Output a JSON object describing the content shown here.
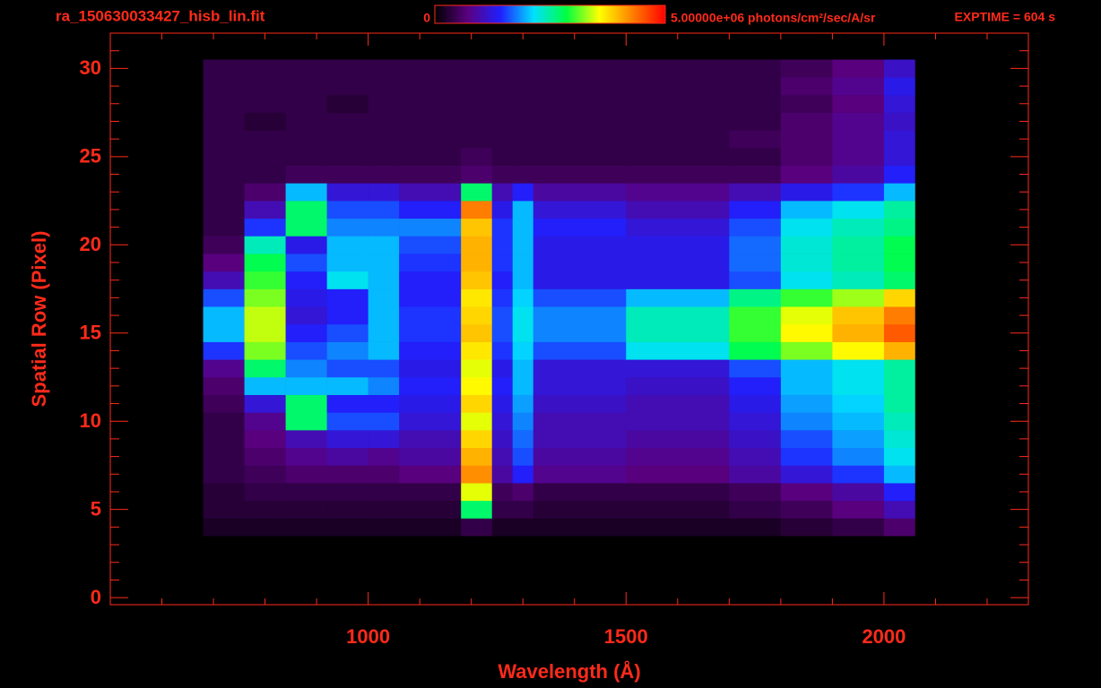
{
  "chart_data": {
    "type": "heatmap",
    "title": "ra_150630033427_hisb_lin.fit",
    "exposure": "EXPTIME = 604 s",
    "xlabel": "Wavelength (Å)",
    "ylabel": "Spatial Row (Pixel)",
    "xlim": [
      500,
      2280
    ],
    "ylim": [
      -0.4,
      32
    ],
    "xticks": [
      1000,
      1500,
      2000
    ],
    "yticks": [
      0,
      5,
      10,
      15,
      20,
      25,
      30
    ],
    "xminor": [
      600,
      700,
      800,
      900,
      1100,
      1200,
      1300,
      1400,
      1600,
      1700,
      1800,
      1900,
      2100,
      2200
    ],
    "yminor": [
      1,
      2,
      3,
      4,
      6,
      7,
      8,
      9,
      11,
      12,
      13,
      14,
      16,
      17,
      18,
      19,
      21,
      22,
      23,
      24,
      26,
      27,
      28,
      29,
      31
    ],
    "axis_color": "#ff2a1a",
    "colormap": [
      "#000000",
      "#5a0080",
      "#2020ff",
      "#00e0ff",
      "#00ff40",
      "#ffff00",
      "#ff8000",
      "#ff0000"
    ],
    "clim": [
      0,
      5000000
    ],
    "colorbar_ticks": [
      0,
      {
        "value": 5000000,
        "label": "5.00000e+06 photons/cm²/sec/A/sr"
      }
    ],
    "x_edges": [
      680,
      760,
      840,
      920,
      1000,
      1060,
      1180,
      1240,
      1280,
      1320,
      1500,
      1700,
      1800,
      1900,
      2000,
      2060
    ],
    "y": [
      4,
      5,
      6,
      7,
      8,
      9,
      10,
      11,
      12,
      13,
      14,
      15,
      16,
      17,
      18,
      19,
      20,
      21,
      22,
      23,
      24,
      25,
      26,
      27,
      28,
      29,
      30
    ],
    "z": [
      [
        200000.0,
        200000.0,
        200000.0,
        200000.0,
        200000.0,
        200000.0,
        400000.0,
        200000.0,
        200000.0,
        200000.0,
        200000.0,
        200000.0,
        300000.0,
        400000.0,
        600000.0
      ],
      [
        300000.0,
        300000.0,
        300000.0,
        300000.0,
        300000.0,
        300000.0,
        2700000.0,
        400000.0,
        400000.0,
        300000.0,
        300000.0,
        400000.0,
        500000.0,
        700000.0,
        1000000.0
      ],
      [
        300000.0,
        400000.0,
        400000.0,
        400000.0,
        400000.0,
        400000.0,
        3500000.0,
        500000.0,
        600000.0,
        400000.0,
        400000.0,
        500000.0,
        700000.0,
        900000.0,
        1400000.0
      ],
      [
        400000.0,
        500000.0,
        600000.0,
        600000.0,
        600000.0,
        700000.0,
        4200000.0,
        900000.0,
        1400000.0,
        800000.0,
        700000.0,
        900000.0,
        1200000.0,
        1500000.0,
        2000000.0
      ],
      [
        400000.0,
        600000.0,
        800000.0,
        900000.0,
        800000.0,
        900000.0,
        4000000.0,
        1000000.0,
        1600000.0,
        900000.0,
        800000.0,
        1000000.0,
        1500000.0,
        1800000.0,
        2200000.0
      ],
      [
        400000.0,
        700000.0,
        1000000.0,
        1200000.0,
        1200000.0,
        1000000.0,
        3800000.0,
        1100000.0,
        1700000.0,
        1000000.0,
        900000.0,
        1100000.0,
        1600000.0,
        1900000.0,
        2300000.0
      ],
      [
        400000.0,
        800000.0,
        2700000.0,
        1600000.0,
        1600000.0,
        1200000.0,
        3500000.0,
        1200000.0,
        1800000.0,
        1000000.0,
        1000000.0,
        1200000.0,
        1800000.0,
        2000000.0,
        2400000.0
      ],
      [
        500000.0,
        1200000.0,
        2700000.0,
        1400000.0,
        1400000.0,
        1300000.0,
        3800000.0,
        1300000.0,
        1900000.0,
        1100000.0,
        1000000.0,
        1300000.0,
        1900000.0,
        2100000.0,
        2500000.0
      ],
      [
        600000.0,
        2000000.0,
        2000000.0,
        2000000.0,
        1800000.0,
        1400000.0,
        3600000.0,
        1400000.0,
        2000000.0,
        1200000.0,
        1100000.0,
        1400000.0,
        2000000.0,
        2200000.0,
        2500000.0
      ],
      [
        800000.0,
        2700000.0,
        1800000.0,
        1600000.0,
        1600000.0,
        1300000.0,
        3500000.0,
        1300000.0,
        2000000.0,
        1200000.0,
        1200000.0,
        1600000.0,
        2000000.0,
        2200000.0,
        2500000.0
      ],
      [
        1500000.0,
        3200000.0,
        1600000.0,
        1800000.0,
        2000000.0,
        1400000.0,
        3700000.0,
        1500000.0,
        2100000.0,
        1600000.0,
        2200000.0,
        2800000.0,
        3200000.0,
        3600000.0,
        4000000.0
      ],
      [
        2000000.0,
        3400000.0,
        1400000.0,
        1600000.0,
        2000000.0,
        1500000.0,
        3900000.0,
        1600000.0,
        2200000.0,
        1800000.0,
        2400000.0,
        3000000.0,
        3600000.0,
        4000000.0,
        4500000.0
      ],
      [
        2000000.0,
        3400000.0,
        1200000.0,
        1400000.0,
        2000000.0,
        1500000.0,
        3800000.0,
        1600000.0,
        2200000.0,
        1800000.0,
        2400000.0,
        3000000.0,
        3500000.0,
        3900000.0,
        4300000.0
      ],
      [
        1600000.0,
        3200000.0,
        1300000.0,
        1400000.0,
        2000000.0,
        1400000.0,
        3700000.0,
        1500000.0,
        2100000.0,
        1600000.0,
        2000000.0,
        2600000.0,
        3000000.0,
        3300000.0,
        3800000.0
      ],
      [
        1000000.0,
        3000000.0,
        1400000.0,
        2200000.0,
        2000000.0,
        1400000.0,
        3900000.0,
        1400000.0,
        2000000.0,
        1300000.0,
        1300000.0,
        1600000.0,
        2200000.0,
        2400000.0,
        2700000.0
      ],
      [
        700000.0,
        2800000.0,
        1600000.0,
        2000000.0,
        2000000.0,
        1500000.0,
        4000000.0,
        1500000.0,
        2000000.0,
        1300000.0,
        1300000.0,
        1700000.0,
        2300000.0,
        2500000.0,
        2800000.0
      ],
      [
        500000.0,
        2400000.0,
        1300000.0,
        2000000.0,
        2000000.0,
        1600000.0,
        4000000.0,
        1500000.0,
        2000000.0,
        1300000.0,
        1300000.0,
        1700000.0,
        2300000.0,
        2500000.0,
        2800000.0
      ],
      [
        400000.0,
        1500000.0,
        2700000.0,
        1800000.0,
        1800000.0,
        1800000.0,
        3900000.0,
        1500000.0,
        2000000.0,
        1400000.0,
        1200000.0,
        1600000.0,
        2200000.0,
        2400000.0,
        2600000.0
      ],
      [
        400000.0,
        1000000.0,
        2700000.0,
        1600000.0,
        1600000.0,
        1400000.0,
        4300000.0,
        1300000.0,
        2000000.0,
        1200000.0,
        1000000.0,
        1400000.0,
        2000000.0,
        2200000.0,
        2500000.0
      ],
      [
        400000.0,
        600000.0,
        2000000.0,
        1200000.0,
        1200000.0,
        1000000.0,
        2700000.0,
        1000000.0,
        1400000.0,
        900000.0,
        800000.0,
        1000000.0,
        1300000.0,
        1500000.0,
        2000000.0
      ],
      [
        400000.0,
        400000.0,
        500000.0,
        500000.0,
        500000.0,
        500000.0,
        600000.0,
        500000.0,
        500000.0,
        500000.0,
        500000.0,
        500000.0,
        700000.0,
        900000.0,
        1400000.0
      ],
      [
        400000.0,
        400000.0,
        400000.0,
        400000.0,
        400000.0,
        400000.0,
        500000.0,
        400000.0,
        400000.0,
        400000.0,
        400000.0,
        400000.0,
        600000.0,
        800000.0,
        1200000.0
      ],
      [
        400000.0,
        400000.0,
        400000.0,
        400000.0,
        400000.0,
        400000.0,
        400000.0,
        400000.0,
        400000.0,
        400000.0,
        400000.0,
        500000.0,
        600000.0,
        800000.0,
        1200000.0
      ],
      [
        400000.0,
        300000.0,
        400000.0,
        400000.0,
        400000.0,
        400000.0,
        400000.0,
        400000.0,
        400000.0,
        400000.0,
        400000.0,
        400000.0,
        600000.0,
        800000.0,
        1100000.0
      ],
      [
        400000.0,
        400000.0,
        400000.0,
        300000.0,
        400000.0,
        400000.0,
        400000.0,
        400000.0,
        400000.0,
        400000.0,
        400000.0,
        400000.0,
        500000.0,
        700000.0,
        1200000.0
      ],
      [
        400000.0,
        400000.0,
        400000.0,
        400000.0,
        400000.0,
        400000.0,
        400000.0,
        400000.0,
        400000.0,
        400000.0,
        400000.0,
        400000.0,
        600000.0,
        800000.0,
        1300000.0
      ],
      [
        400000.0,
        400000.0,
        400000.0,
        400000.0,
        400000.0,
        400000.0,
        400000.0,
        400000.0,
        400000.0,
        400000.0,
        400000.0,
        400000.0,
        500000.0,
        700000.0,
        1100000.0
      ]
    ]
  }
}
